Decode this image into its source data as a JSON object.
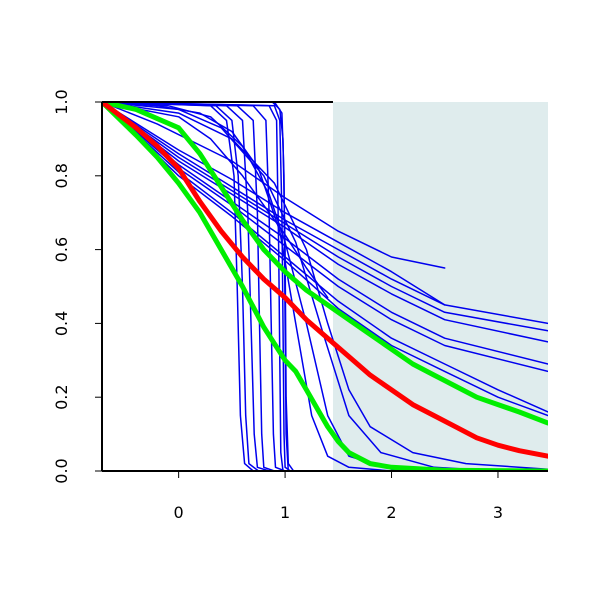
{
  "chart_data": {
    "type": "line",
    "title": "",
    "xlabel": "",
    "ylabel": "",
    "xlim": [
      -0.72,
      3.47
    ],
    "ylim": [
      0,
      1
    ],
    "x_ticks": [
      0,
      1,
      2,
      3
    ],
    "x_tick_labels": [
      "0",
      "1",
      "2",
      "3"
    ],
    "y_ticks": [
      0,
      0.2,
      0.4,
      0.6,
      0.8,
      1
    ],
    "y_tick_labels": [
      "0.0",
      "0.2",
      "0.4",
      "0.6",
      "0.8",
      "1.0"
    ],
    "grid": false,
    "legend": "none",
    "shaded_region": {
      "x_from": 1.45,
      "x_to": 3.47,
      "y_from": 0,
      "y_to": 1,
      "color": "#dfeced"
    },
    "colors": {
      "blue": "#0000ee",
      "red": "#ff0000",
      "green": "#00ee00",
      "axis": "#000000"
    },
    "x_start": -0.72,
    "series": [
      {
        "color": "#0000ee",
        "width": 1.5,
        "points": [
          [
            -0.72,
            1
          ],
          [
            0.3,
            0.99
          ],
          [
            0.45,
            0.95
          ],
          [
            0.52,
            0.8
          ],
          [
            0.55,
            0.5
          ],
          [
            0.58,
            0.15
          ],
          [
            0.62,
            0.02
          ],
          [
            0.7,
            0
          ]
        ]
      },
      {
        "color": "#0000ee",
        "width": 1.5,
        "points": [
          [
            -0.72,
            1
          ],
          [
            0.35,
            0.99
          ],
          [
            0.5,
            0.95
          ],
          [
            0.56,
            0.8
          ],
          [
            0.6,
            0.5
          ],
          [
            0.63,
            0.15
          ],
          [
            0.66,
            0.02
          ],
          [
            0.75,
            0
          ]
        ]
      },
      {
        "color": "#0000ee",
        "width": 1.5,
        "points": [
          [
            -0.72,
            1
          ],
          [
            0.45,
            0.99
          ],
          [
            0.6,
            0.95
          ],
          [
            0.65,
            0.7
          ],
          [
            0.68,
            0.4
          ],
          [
            0.71,
            0.1
          ],
          [
            0.74,
            0.01
          ],
          [
            0.85,
            0
          ]
        ]
      },
      {
        "color": "#0000ee",
        "width": 1.5,
        "points": [
          [
            -0.72,
            1
          ],
          [
            0.55,
            0.99
          ],
          [
            0.7,
            0.95
          ],
          [
            0.74,
            0.7
          ],
          [
            0.76,
            0.4
          ],
          [
            0.78,
            0.1
          ],
          [
            0.8,
            0.01
          ],
          [
            0.9,
            0
          ]
        ]
      },
      {
        "color": "#0000ee",
        "width": 1.5,
        "points": [
          [
            -0.72,
            1
          ],
          [
            0.7,
            0.99
          ],
          [
            0.82,
            0.95
          ],
          [
            0.85,
            0.7
          ],
          [
            0.87,
            0.4
          ],
          [
            0.89,
            0.1
          ],
          [
            0.91,
            0.01
          ],
          [
            1.0,
            0
          ]
        ]
      },
      {
        "color": "#0000ee",
        "width": 1.5,
        "points": [
          [
            -0.72,
            1
          ],
          [
            0.85,
            0.99
          ],
          [
            0.92,
            0.95
          ],
          [
            0.94,
            0.6
          ],
          [
            0.95,
            0.3
          ],
          [
            0.96,
            0.05
          ],
          [
            0.98,
            0
          ]
        ]
      },
      {
        "color": "#0000ee",
        "width": 1.5,
        "points": [
          [
            -0.72,
            1
          ],
          [
            0.9,
            0.99
          ],
          [
            0.95,
            0.95
          ],
          [
            0.97,
            0.7
          ],
          [
            0.98,
            0.4
          ],
          [
            0.99,
            0.1
          ],
          [
            1.0,
            0.01
          ],
          [
            1.05,
            0
          ]
        ]
      },
      {
        "color": "#0000ee",
        "width": 1.5,
        "points": [
          [
            -0.72,
            1
          ],
          [
            0.9,
            1
          ],
          [
            0.97,
            0.97
          ],
          [
            0.99,
            0.8
          ],
          [
            1.0,
            0.4
          ],
          [
            1.01,
            0.1
          ],
          [
            1.03,
            0
          ]
        ]
      },
      {
        "color": "#0000ee",
        "width": 1.5,
        "points": [
          [
            -0.72,
            1
          ],
          [
            0.88,
            1
          ],
          [
            0.95,
            0.98
          ],
          [
            0.98,
            0.9
          ],
          [
            1.0,
            0.6
          ],
          [
            1.01,
            0.2
          ],
          [
            1.03,
            0.02
          ],
          [
            1.08,
            0
          ]
        ]
      },
      {
        "color": "#0000ee",
        "width": 1.5,
        "points": [
          [
            -0.72,
            1
          ],
          [
            -0.2,
            0.99
          ],
          [
            0.2,
            0.97
          ],
          [
            0.5,
            0.92
          ],
          [
            0.75,
            0.82
          ],
          [
            0.95,
            0.65
          ],
          [
            1.1,
            0.4
          ],
          [
            1.25,
            0.15
          ],
          [
            1.4,
            0.04
          ],
          [
            1.6,
            0.01
          ],
          [
            2.0,
            0
          ]
        ]
      },
      {
        "color": "#0000ee",
        "width": 1.5,
        "points": [
          [
            -0.72,
            1
          ],
          [
            -0.1,
            0.99
          ],
          [
            0.3,
            0.96
          ],
          [
            0.6,
            0.88
          ],
          [
            0.85,
            0.75
          ],
          [
            1.0,
            0.62
          ],
          [
            1.2,
            0.4
          ],
          [
            1.4,
            0.15
          ],
          [
            1.6,
            0.04
          ],
          [
            2.0,
            0.005
          ],
          [
            2.5,
            0
          ]
        ]
      },
      {
        "color": "#0000ee",
        "width": 1.5,
        "points": [
          [
            -0.72,
            1
          ],
          [
            0.0,
            0.98
          ],
          [
            0.4,
            0.93
          ],
          [
            0.8,
            0.8
          ],
          [
            1.1,
            0.62
          ],
          [
            1.35,
            0.38
          ],
          [
            1.6,
            0.15
          ],
          [
            1.9,
            0.05
          ],
          [
            2.4,
            0.01
          ],
          [
            3.0,
            0
          ]
        ]
      },
      {
        "color": "#0000ee",
        "width": 1.5,
        "points": [
          [
            -0.72,
            1
          ],
          [
            0.0,
            0.97
          ],
          [
            0.5,
            0.9
          ],
          [
            0.9,
            0.78
          ],
          [
            1.2,
            0.6
          ],
          [
            1.4,
            0.4
          ],
          [
            1.6,
            0.22
          ],
          [
            1.8,
            0.12
          ],
          [
            2.2,
            0.05
          ],
          [
            2.7,
            0.02
          ],
          [
            3.47,
            0.005
          ]
        ]
      },
      {
        "color": "#0000ee",
        "width": 1.5,
        "points": [
          [
            -0.72,
            1
          ],
          [
            -0.2,
            0.94
          ],
          [
            0.5,
            0.84
          ],
          [
            1.0,
            0.74
          ],
          [
            1.5,
            0.65
          ],
          [
            2.0,
            0.58
          ],
          [
            2.5,
            0.55
          ]
        ]
      },
      {
        "color": "#0000ee",
        "width": 1.5,
        "points": [
          [
            -0.72,
            1
          ],
          [
            0.0,
            0.87
          ],
          [
            0.5,
            0.79
          ],
          [
            1.0,
            0.7
          ],
          [
            1.5,
            0.62
          ],
          [
            2.0,
            0.54
          ],
          [
            2.5,
            0.45
          ]
        ]
      },
      {
        "color": "#0000ee",
        "width": 1.5,
        "points": [
          [
            -0.72,
            1
          ],
          [
            0.0,
            0.86
          ],
          [
            0.5,
            0.77
          ],
          [
            1.0,
            0.68
          ],
          [
            1.5,
            0.6
          ],
          [
            2.0,
            0.52
          ],
          [
            2.5,
            0.45
          ],
          [
            3.47,
            0.4
          ]
        ]
      },
      {
        "color": "#0000ee",
        "width": 1.5,
        "points": [
          [
            -0.72,
            1
          ],
          [
            0.0,
            0.85
          ],
          [
            0.5,
            0.76
          ],
          [
            1.0,
            0.67
          ],
          [
            1.5,
            0.58
          ],
          [
            2.0,
            0.5
          ],
          [
            2.5,
            0.43
          ],
          [
            3.47,
            0.38
          ]
        ]
      },
      {
        "color": "#0000ee",
        "width": 1.5,
        "points": [
          [
            -0.72,
            1
          ],
          [
            0.0,
            0.84
          ],
          [
            0.5,
            0.75
          ],
          [
            1.0,
            0.66
          ],
          [
            1.5,
            0.56
          ],
          [
            2.0,
            0.48
          ],
          [
            2.5,
            0.41
          ],
          [
            3.47,
            0.35
          ]
        ]
      },
      {
        "color": "#0000ee",
        "width": 1.5,
        "points": [
          [
            -0.72,
            1
          ],
          [
            0.0,
            0.83
          ],
          [
            0.5,
            0.73
          ],
          [
            1.0,
            0.63
          ],
          [
            1.5,
            0.52
          ],
          [
            2.0,
            0.43
          ],
          [
            2.5,
            0.36
          ],
          [
            3.47,
            0.29
          ]
        ]
      },
      {
        "color": "#0000ee",
        "width": 1.5,
        "points": [
          [
            -0.72,
            1
          ],
          [
            0.0,
            0.82
          ],
          [
            0.5,
            0.72
          ],
          [
            1.0,
            0.61
          ],
          [
            1.5,
            0.5
          ],
          [
            2.0,
            0.41
          ],
          [
            2.5,
            0.34
          ],
          [
            3.47,
            0.27
          ]
        ]
      },
      {
        "color": "#0000ee",
        "width": 1.5,
        "points": [
          [
            -0.72,
            1
          ],
          [
            0.0,
            0.81
          ],
          [
            0.5,
            0.7
          ],
          [
            1.0,
            0.58
          ],
          [
            1.5,
            0.46
          ],
          [
            2.0,
            0.36
          ],
          [
            2.5,
            0.29
          ],
          [
            3.0,
            0.22
          ],
          [
            3.47,
            0.16
          ]
        ]
      },
      {
        "color": "#0000ee",
        "width": 1.5,
        "points": [
          [
            -0.72,
            1
          ],
          [
            0.0,
            0.8
          ],
          [
            0.5,
            0.69
          ],
          [
            1.0,
            0.57
          ],
          [
            1.5,
            0.44
          ],
          [
            2.0,
            0.34
          ],
          [
            2.5,
            0.27
          ],
          [
            3.0,
            0.2
          ],
          [
            3.47,
            0.15
          ]
        ]
      },
      {
        "color": "#0000ee",
        "width": 1.5,
        "points": [
          [
            -0.72,
            1
          ],
          [
            0.0,
            0.96
          ],
          [
            0.3,
            0.9
          ],
          [
            0.6,
            0.8
          ],
          [
            0.8,
            0.72
          ],
          [
            1.0,
            0.64
          ],
          [
            1.2,
            0.55
          ],
          [
            1.4,
            0.47
          ]
        ]
      },
      {
        "color": "#00ee00",
        "width": 5,
        "points": [
          [
            -0.72,
            1
          ],
          [
            -0.4,
            0.98
          ],
          [
            0.0,
            0.93
          ],
          [
            0.2,
            0.86
          ],
          [
            0.4,
            0.77
          ],
          [
            0.6,
            0.68
          ],
          [
            0.8,
            0.6
          ],
          [
            1.0,
            0.54
          ],
          [
            1.2,
            0.49
          ],
          [
            1.4,
            0.45
          ],
          [
            1.6,
            0.41
          ],
          [
            1.8,
            0.37
          ],
          [
            2.0,
            0.33
          ],
          [
            2.2,
            0.29
          ],
          [
            2.4,
            0.26
          ],
          [
            2.6,
            0.23
          ],
          [
            2.8,
            0.2
          ],
          [
            3.0,
            0.18
          ],
          [
            3.2,
            0.16
          ],
          [
            3.47,
            0.13
          ]
        ]
      },
      {
        "color": "#00ee00",
        "width": 5,
        "points": [
          [
            -0.72,
            1
          ],
          [
            -0.4,
            0.91
          ],
          [
            -0.2,
            0.85
          ],
          [
            0.0,
            0.78
          ],
          [
            0.2,
            0.7
          ],
          [
            0.4,
            0.6
          ],
          [
            0.6,
            0.5
          ],
          [
            0.8,
            0.39
          ],
          [
            1.0,
            0.3
          ],
          [
            1.1,
            0.27
          ],
          [
            1.2,
            0.22
          ],
          [
            1.3,
            0.17
          ],
          [
            1.4,
            0.12
          ],
          [
            1.5,
            0.08
          ],
          [
            1.6,
            0.05
          ],
          [
            1.8,
            0.02
          ],
          [
            2.0,
            0.01
          ],
          [
            2.5,
            0.002
          ],
          [
            3.47,
            0
          ]
        ]
      },
      {
        "color": "#ff0000",
        "width": 5,
        "points": [
          [
            -0.72,
            1
          ],
          [
            -0.4,
            0.93
          ],
          [
            -0.2,
            0.88
          ],
          [
            0.0,
            0.82
          ],
          [
            0.2,
            0.73
          ],
          [
            0.4,
            0.65
          ],
          [
            0.6,
            0.58
          ],
          [
            0.8,
            0.52
          ],
          [
            1.0,
            0.47
          ],
          [
            1.2,
            0.41
          ],
          [
            1.4,
            0.36
          ],
          [
            1.6,
            0.31
          ],
          [
            1.8,
            0.26
          ],
          [
            2.0,
            0.22
          ],
          [
            2.2,
            0.18
          ],
          [
            2.4,
            0.15
          ],
          [
            2.6,
            0.12
          ],
          [
            2.8,
            0.09
          ],
          [
            3.0,
            0.07
          ],
          [
            3.2,
            0.055
          ],
          [
            3.47,
            0.04
          ]
        ]
      }
    ]
  }
}
